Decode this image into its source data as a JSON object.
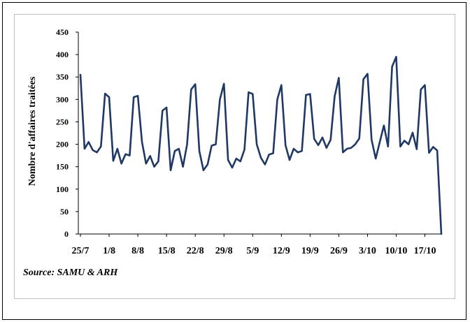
{
  "chart_data": {
    "type": "line",
    "title": "",
    "xlabel": "",
    "ylabel": "Nombre d'affaires traitées",
    "ylim": [
      0,
      450
    ],
    "yticks": [
      0,
      50,
      100,
      150,
      200,
      250,
      300,
      350,
      400,
      450
    ],
    "x_tick_labels": [
      "25/7",
      "1/8",
      "8/8",
      "15/8",
      "22/8",
      "29/8",
      "5/9",
      "12/9",
      "19/9",
      "26/9",
      "3/10",
      "10/10",
      "17/10"
    ],
    "grid": false,
    "legend": "none",
    "series": [
      {
        "color": "#1f3864",
        "values": [
          355,
          190,
          205,
          187,
          182,
          195,
          313,
          305,
          163,
          190,
          157,
          178,
          175,
          305,
          308,
          205,
          157,
          174,
          150,
          162,
          275,
          282,
          142,
          185,
          190,
          150,
          200,
          322,
          334,
          185,
          142,
          155,
          197,
          200,
          300,
          335,
          165,
          148,
          168,
          162,
          188,
          316,
          312,
          200,
          170,
          155,
          177,
          180,
          300,
          332,
          198,
          165,
          190,
          182,
          185,
          310,
          312,
          212,
          198,
          215,
          192,
          210,
          307,
          348,
          182,
          190,
          192,
          200,
          213,
          345,
          357,
          210,
          168,
          205,
          242,
          195,
          373,
          395,
          195,
          208,
          200,
          226,
          189,
          322,
          332,
          181,
          194,
          186,
          0
        ]
      }
    ]
  },
  "source": "Source: SAMU &  ARH"
}
